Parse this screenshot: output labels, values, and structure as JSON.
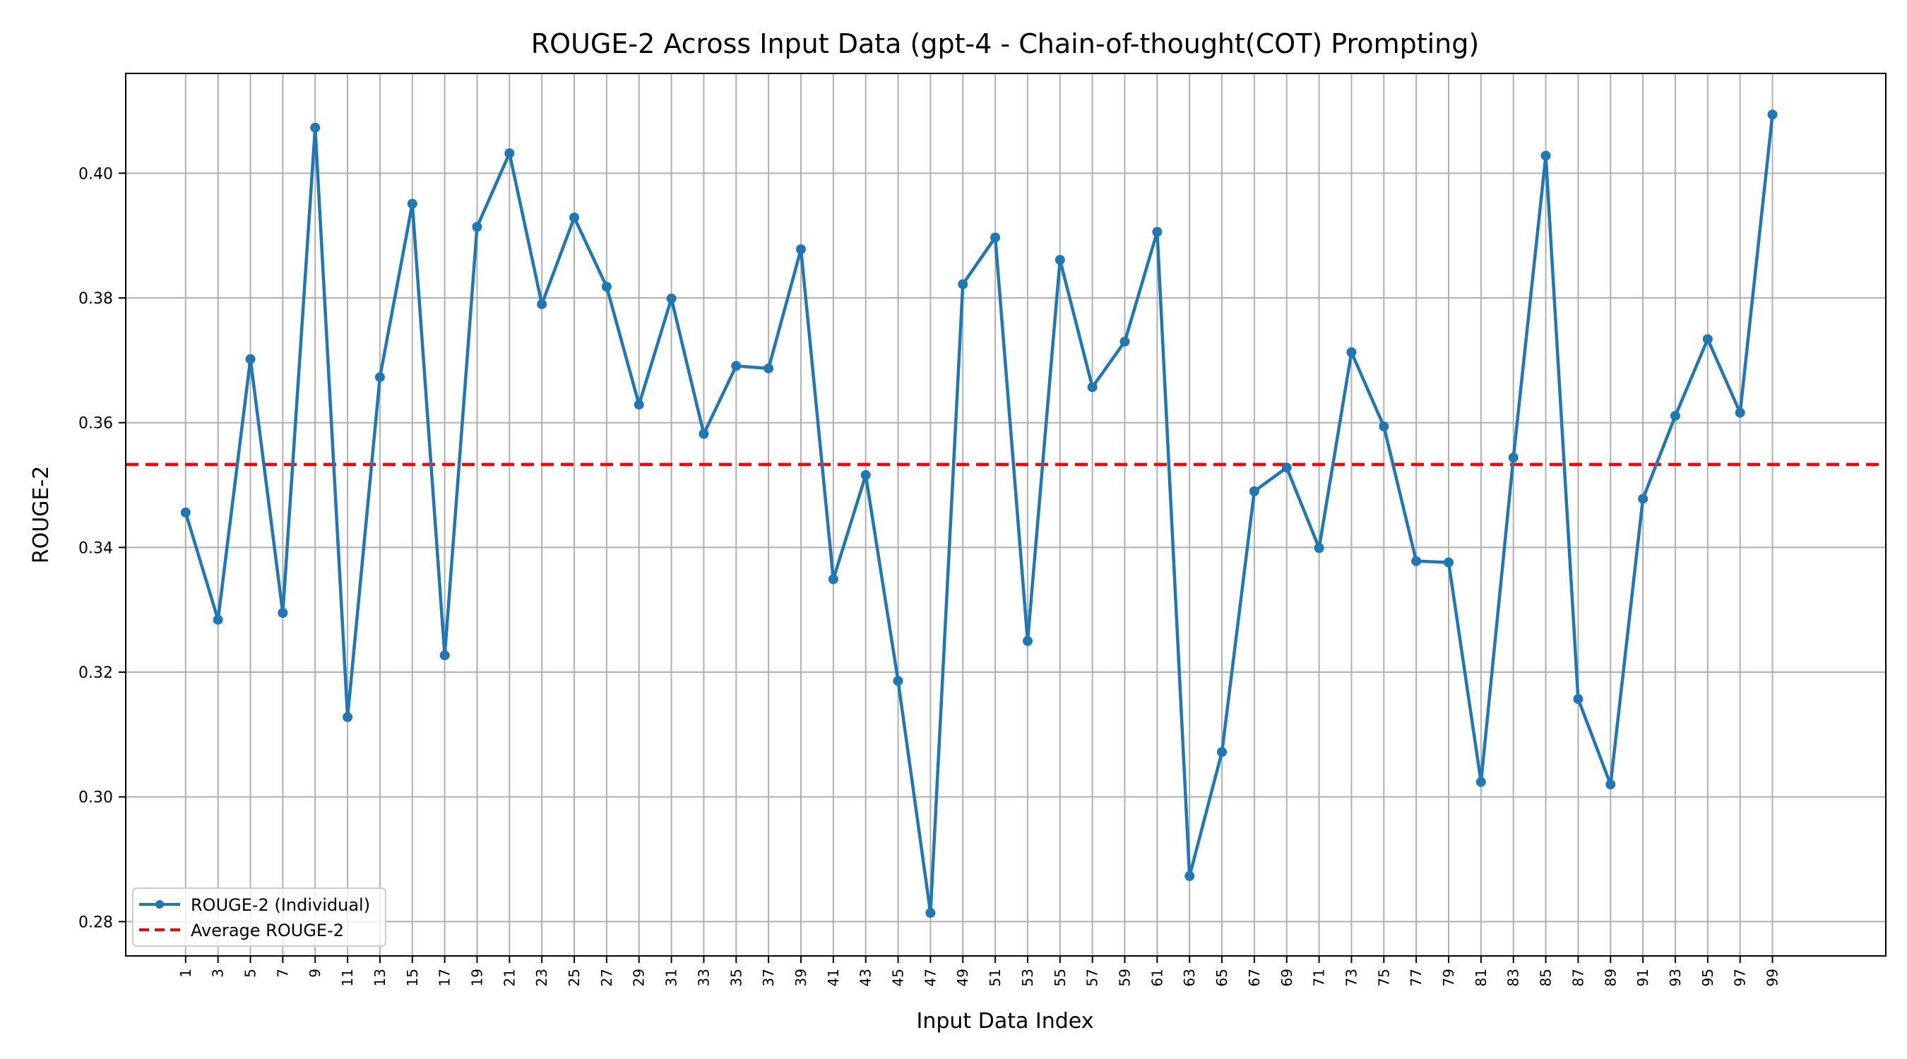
{
  "chart_data": {
    "type": "line",
    "title": "ROUGE-2 Across Input Data (gpt-4 - Chain-of-thought(COT) Prompting)",
    "xlabel": "Input Data Index",
    "ylabel": "ROUGE-2",
    "xlim": [
      -2.7,
      106
    ],
    "ylim": [
      0.2745,
      0.416
    ],
    "grid": true,
    "legend_position": "lower-left",
    "x_ticks": [
      1,
      3,
      5,
      7,
      9,
      11,
      13,
      15,
      17,
      19,
      21,
      23,
      25,
      27,
      29,
      31,
      33,
      35,
      37,
      39,
      41,
      43,
      45,
      47,
      49,
      51,
      53,
      55,
      57,
      59,
      61,
      63,
      65,
      67,
      69,
      71,
      73,
      75,
      77,
      79,
      81,
      83,
      85,
      87,
      89,
      91,
      93,
      95,
      97,
      99
    ],
    "y_ticks": [
      0.28,
      0.3,
      0.32,
      0.34,
      0.36,
      0.38,
      0.4
    ],
    "y_tick_labels": [
      "0.28",
      "0.30",
      "0.32",
      "0.34",
      "0.36",
      "0.38",
      "0.40"
    ],
    "series": [
      {
        "name": "ROUGE-2 (Individual)",
        "color": "#1f77b4",
        "style": "line-with-markers",
        "x": [
          1,
          3,
          5,
          7,
          9,
          11,
          13,
          15,
          17,
          19,
          21,
          23,
          25,
          27,
          29,
          31,
          33,
          35,
          37,
          39,
          41,
          43,
          45,
          47,
          49,
          51,
          53,
          55,
          57,
          59,
          61,
          63,
          65,
          67,
          69,
          71,
          73,
          75,
          77,
          79,
          81,
          83,
          85,
          87,
          89,
          91,
          93,
          95,
          97,
          99
        ],
        "y": [
          0.3456,
          0.3284,
          0.3702,
          0.3295,
          0.4073,
          0.3128,
          0.3673,
          0.3951,
          0.3227,
          0.3914,
          0.4032,
          0.379,
          0.3929,
          0.3818,
          0.3629,
          0.3799,
          0.3582,
          0.3691,
          0.3687,
          0.3878,
          0.3349,
          0.3516,
          0.3186,
          0.2814,
          0.3822,
          0.3897,
          0.325,
          0.3861,
          0.3657,
          0.373,
          0.3906,
          0.2873,
          0.3072,
          0.349,
          0.3528,
          0.3399,
          0.3713,
          0.3594,
          0.3378,
          0.3376,
          0.3024,
          0.3544,
          0.4028,
          0.3157,
          0.302,
          0.3478,
          0.3611,
          0.3734,
          0.3616,
          0.4094
        ]
      },
      {
        "name": "Average ROUGE-2",
        "color": "#ff0000",
        "style": "dashed-hline",
        "y": 0.3533
      }
    ]
  }
}
